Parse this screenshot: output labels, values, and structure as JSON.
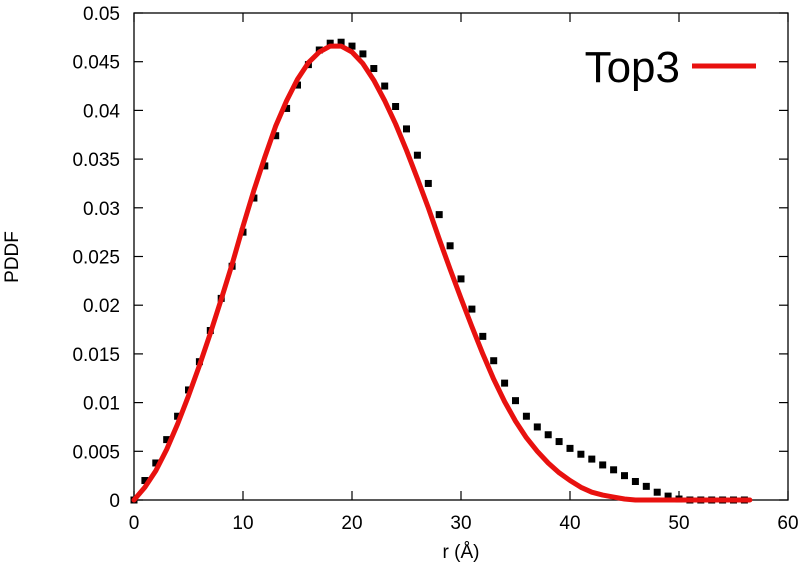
{
  "chart_data": {
    "type": "scatter",
    "xlabel": "r (Å)",
    "ylabel": "PDDF",
    "xlim": [
      0,
      60
    ],
    "ylim": [
      0,
      0.05
    ],
    "x_ticks": [
      0,
      10,
      20,
      30,
      40,
      50,
      60
    ],
    "y_ticks": [
      0,
      0.005,
      0.01,
      0.015,
      0.02,
      0.025,
      0.03,
      0.035,
      0.04,
      0.045,
      0.05
    ],
    "x_tick_labels": [
      "0",
      "10",
      "20",
      "30",
      "40",
      "50",
      "60"
    ],
    "y_tick_labels": [
      "0",
      "0.005",
      "0.01",
      "0.015",
      "0.02",
      "0.025",
      "0.03",
      "0.035",
      "0.04",
      "0.045",
      "0.05"
    ],
    "grid": false,
    "legend_position": "top-right",
    "colors": {
      "fit": "#e8110f",
      "points": "#000000",
      "axes": "#000000"
    },
    "series": [
      {
        "style": "points",
        "x": [
          0,
          1,
          2,
          3,
          4,
          5,
          6,
          7,
          8,
          9,
          10,
          11,
          12,
          13,
          14,
          15,
          16,
          17,
          18,
          19,
          20,
          21,
          22,
          23,
          24,
          25,
          26,
          27,
          28,
          29,
          30,
          31,
          32,
          33,
          34,
          35,
          36,
          37,
          38,
          39,
          40,
          41,
          42,
          43,
          44,
          45,
          46,
          47,
          48,
          49,
          50,
          51,
          52,
          53,
          54,
          55,
          56
        ],
        "y": [
          0,
          0.002,
          0.0038,
          0.0062,
          0.0086,
          0.0113,
          0.0142,
          0.0174,
          0.0207,
          0.024,
          0.0275,
          0.031,
          0.0343,
          0.0374,
          0.0402,
          0.0426,
          0.0447,
          0.0462,
          0.0469,
          0.047,
          0.0466,
          0.0458,
          0.0443,
          0.0425,
          0.0404,
          0.0381,
          0.0354,
          0.0325,
          0.0293,
          0.0261,
          0.0227,
          0.0196,
          0.0168,
          0.0143,
          0.012,
          0.0102,
          0.0086,
          0.0075,
          0.0067,
          0.006,
          0.0053,
          0.0047,
          0.0042,
          0.0036,
          0.0031,
          0.0025,
          0.0019,
          0.0014,
          0.0008,
          0.0004,
          0.0001,
          0,
          0,
          0,
          0,
          0,
          0
        ]
      },
      {
        "name": "Top3",
        "style": "line",
        "x": [
          0,
          1,
          2,
          3,
          4,
          5,
          6,
          7,
          8,
          9,
          10,
          11,
          12,
          13,
          14,
          15,
          16,
          17,
          18,
          19,
          20,
          21,
          22,
          23,
          24,
          25,
          26,
          27,
          28,
          29,
          30,
          31,
          32,
          33,
          34,
          35,
          36,
          37,
          38,
          39,
          40,
          41,
          42,
          43,
          44,
          45,
          46,
          47,
          48,
          49,
          50,
          51,
          52,
          53,
          54,
          55,
          56.5
        ],
        "y": [
          0,
          0.0013,
          0.003,
          0.0052,
          0.0078,
          0.0107,
          0.0138,
          0.0171,
          0.0206,
          0.0242,
          0.0281,
          0.0318,
          0.0352,
          0.0384,
          0.041,
          0.0432,
          0.0449,
          0.046,
          0.0466,
          0.0466,
          0.046,
          0.0448,
          0.0431,
          0.041,
          0.0386,
          0.0359,
          0.033,
          0.03,
          0.0268,
          0.0237,
          0.0207,
          0.0178,
          0.015,
          0.0124,
          0.0101,
          0.0081,
          0.0064,
          0.005,
          0.0038,
          0.0028,
          0.002,
          0.0013,
          0.0008,
          0.0005,
          0.0003,
          0.0001,
          0,
          0,
          0,
          0,
          0,
          0,
          0,
          0,
          0,
          0,
          0
        ]
      }
    ]
  }
}
